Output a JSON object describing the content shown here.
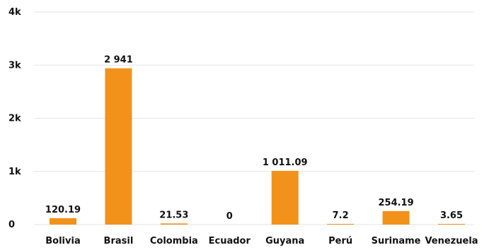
{
  "chart_data": {
    "type": "bar",
    "categories": [
      "Bolivia",
      "Brasil",
      "Colombia",
      "Ecuador",
      "Guyana",
      "Perú",
      "Suriname",
      "Venezuela"
    ],
    "values": [
      120.19,
      2941,
      21.53,
      0,
      1011.09,
      7.2,
      254.19,
      3.65
    ],
    "value_labels": [
      "120.19",
      "2 941",
      "21.53",
      "0",
      "1 011.09",
      "7.2",
      "254.19",
      "3.65"
    ],
    "y_ticks": [
      0,
      1000,
      2000,
      3000,
      4000
    ],
    "y_tick_labels": [
      "0",
      "1k",
      "2k",
      "3k",
      "4k"
    ],
    "ylim": [
      0,
      4000
    ],
    "grid": true,
    "legend": "none",
    "bar_color": "#f2921b"
  }
}
